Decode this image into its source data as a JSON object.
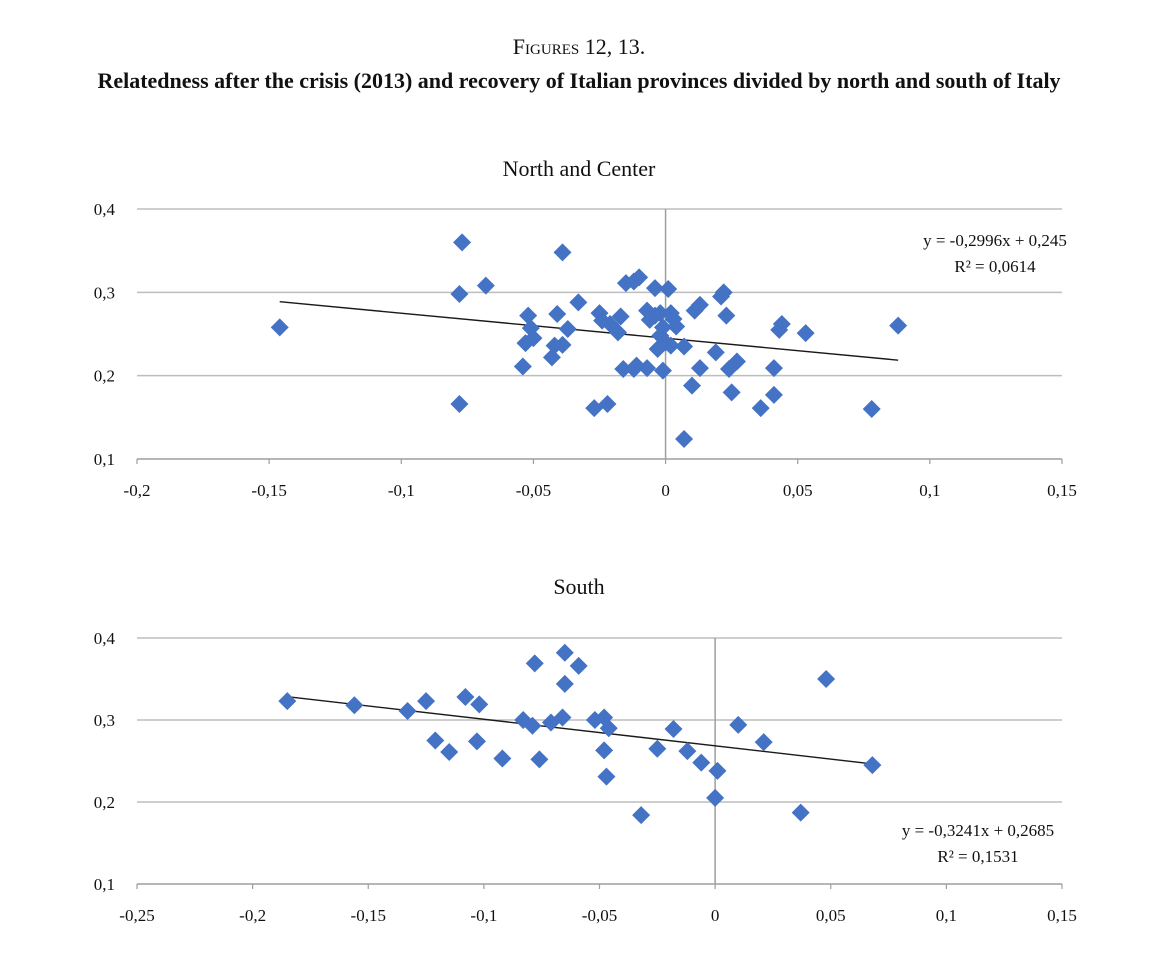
{
  "figure": {
    "label": "Figures 12, 13.",
    "title": "Relatedness after the crisis (2013) and recovery of Italian provinces divided by north and south of Italy"
  },
  "chart_data": [
    {
      "type": "scatter",
      "title": "North and Center",
      "xlabel": "",
      "ylabel": "",
      "xlim": [
        -0.2,
        0.15
      ],
      "ylim": [
        0.1,
        0.4
      ],
      "x_ticks": [
        "-0,2",
        "-0,15",
        "-0,1",
        "-0,05",
        "0",
        "0,05",
        "0,1",
        "0,15"
      ],
      "x_tick_values": [
        -0.2,
        -0.15,
        -0.1,
        -0.05,
        0,
        0.05,
        0.1,
        0.15
      ],
      "y_ticks": [
        "0,1",
        "0,2",
        "0,3",
        "0,4"
      ],
      "y_tick_values": [
        0.1,
        0.2,
        0.3,
        0.4
      ],
      "grid": "horizontal",
      "marker_color": "#4472C4",
      "trendline": {
        "slope": -0.2996,
        "intercept": 0.245,
        "x_range": [
          -0.146,
          0.088
        ],
        "equation": "y = -0,2996x + 0,245",
        "r2": "R² = 0,0614",
        "label_position": "top-right"
      },
      "points": [
        [
          -0.146,
          0.258
        ],
        [
          -0.077,
          0.36
        ],
        [
          -0.078,
          0.298
        ],
        [
          -0.078,
          0.166
        ],
        [
          -0.068,
          0.308
        ],
        [
          -0.054,
          0.211
        ],
        [
          -0.052,
          0.272
        ],
        [
          -0.051,
          0.257
        ],
        [
          -0.05,
          0.245
        ],
        [
          -0.053,
          0.239
        ],
        [
          -0.039,
          0.348
        ],
        [
          -0.041,
          0.274
        ],
        [
          -0.042,
          0.236
        ],
        [
          -0.039,
          0.237
        ],
        [
          -0.043,
          0.222
        ],
        [
          -0.037,
          0.256
        ],
        [
          -0.033,
          0.288
        ],
        [
          -0.027,
          0.161
        ],
        [
          -0.022,
          0.166
        ],
        [
          -0.025,
          0.275
        ],
        [
          -0.024,
          0.266
        ],
        [
          -0.021,
          0.262
        ],
        [
          -0.018,
          0.252
        ],
        [
          -0.017,
          0.271
        ],
        [
          -0.015,
          0.311
        ],
        [
          -0.012,
          0.313
        ],
        [
          -0.01,
          0.318
        ],
        [
          -0.016,
          0.208
        ],
        [
          -0.012,
          0.208
        ],
        [
          -0.011,
          0.212
        ],
        [
          -0.007,
          0.209
        ],
        [
          -0.007,
          0.278
        ],
        [
          -0.006,
          0.267
        ],
        [
          -0.004,
          0.272
        ],
        [
          -0.004,
          0.305
        ],
        [
          -0.002,
          0.275
        ],
        [
          0.001,
          0.304
        ],
        [
          0.002,
          0.275
        ],
        [
          0.003,
          0.268
        ],
        [
          -0.001,
          0.258
        ],
        [
          0.004,
          0.259
        ],
        [
          -0.002,
          0.248
        ],
        [
          0.0,
          0.24
        ],
        [
          -0.003,
          0.232
        ],
        [
          0.002,
          0.236
        ],
        [
          0.007,
          0.235
        ],
        [
          -0.001,
          0.206
        ],
        [
          0.007,
          0.124
        ],
        [
          0.01,
          0.188
        ],
        [
          0.011,
          0.278
        ],
        [
          0.013,
          0.285
        ],
        [
          0.013,
          0.209
        ],
        [
          0.019,
          0.228
        ],
        [
          0.021,
          0.295
        ],
        [
          0.022,
          0.3
        ],
        [
          0.023,
          0.272
        ],
        [
          0.024,
          0.208
        ],
        [
          0.025,
          0.18
        ],
        [
          0.027,
          0.217
        ],
        [
          0.036,
          0.161
        ],
        [
          0.041,
          0.209
        ],
        [
          0.041,
          0.177
        ],
        [
          0.043,
          0.255
        ],
        [
          0.044,
          0.262
        ],
        [
          0.053,
          0.251
        ],
        [
          0.078,
          0.16
        ],
        [
          0.088,
          0.26
        ]
      ]
    },
    {
      "type": "scatter",
      "title": "South",
      "xlabel": "",
      "ylabel": "",
      "xlim": [
        -0.25,
        0.15
      ],
      "ylim": [
        0.1,
        0.4
      ],
      "x_ticks": [
        "-0,25",
        "-0,2",
        "-0,15",
        "-0,1",
        "-0,05",
        "0",
        "0,05",
        "0,1",
        "0,15"
      ],
      "x_tick_values": [
        -0.25,
        -0.2,
        -0.15,
        -0.1,
        -0.05,
        0,
        0.05,
        0.1,
        0.15
      ],
      "y_ticks": [
        "0,1",
        "0,2",
        "0,3",
        "0,4"
      ],
      "y_tick_values": [
        0.1,
        0.2,
        0.3,
        0.4
      ],
      "grid": "horizontal",
      "marker_color": "#4472C4",
      "trendline": {
        "slope": -0.3241,
        "intercept": 0.2685,
        "x_range": [
          -0.185,
          0.068
        ],
        "equation": "y = -0,3241x + 0,2685",
        "r2": "R² = 0,1531",
        "label_position": "bottom-right"
      },
      "points": [
        [
          -0.185,
          0.323
        ],
        [
          -0.156,
          0.318
        ],
        [
          -0.133,
          0.311
        ],
        [
          -0.125,
          0.323
        ],
        [
          -0.121,
          0.275
        ],
        [
          -0.115,
          0.261
        ],
        [
          -0.108,
          0.328
        ],
        [
          -0.102,
          0.319
        ],
        [
          -0.103,
          0.274
        ],
        [
          -0.092,
          0.253
        ],
        [
          -0.083,
          0.3
        ],
        [
          -0.079,
          0.293
        ],
        [
          -0.078,
          0.369
        ],
        [
          -0.076,
          0.252
        ],
        [
          -0.071,
          0.297
        ],
        [
          -0.066,
          0.303
        ],
        [
          -0.065,
          0.382
        ],
        [
          -0.065,
          0.344
        ],
        [
          -0.059,
          0.366
        ],
        [
          -0.052,
          0.3
        ],
        [
          -0.048,
          0.303
        ],
        [
          -0.046,
          0.29
        ],
        [
          -0.048,
          0.263
        ],
        [
          -0.047,
          0.231
        ],
        [
          -0.032,
          0.184
        ],
        [
          -0.025,
          0.265
        ],
        [
          -0.018,
          0.289
        ],
        [
          -0.012,
          0.262
        ],
        [
          -0.006,
          0.248
        ],
        [
          0.001,
          0.238
        ],
        [
          0.0,
          0.205
        ],
        [
          0.01,
          0.294
        ],
        [
          0.021,
          0.273
        ],
        [
          0.037,
          0.187
        ],
        [
          0.048,
          0.35
        ],
        [
          0.068,
          0.245
        ]
      ]
    }
  ]
}
